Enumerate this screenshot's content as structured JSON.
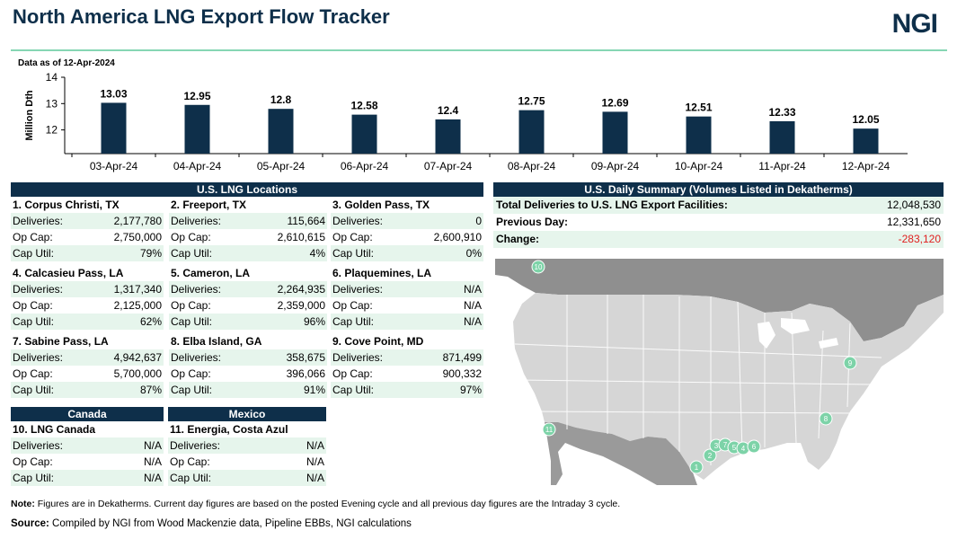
{
  "header": {
    "title": "North America LNG Export Flow Tracker",
    "logo": "NGI",
    "as_of": "Data as of 12-Apr-2024"
  },
  "chart_data": {
    "type": "bar",
    "categories": [
      "03-Apr-24",
      "04-Apr-24",
      "05-Apr-24",
      "06-Apr-24",
      "07-Apr-24",
      "08-Apr-24",
      "09-Apr-24",
      "10-Apr-24",
      "11-Apr-24",
      "12-Apr-24"
    ],
    "values": [
      13.03,
      12.95,
      12.8,
      12.58,
      12.4,
      12.75,
      12.69,
      12.51,
      12.33,
      12.05
    ],
    "value_labels": [
      "13.03",
      "12.95",
      "12.8",
      "12.58",
      "12.4",
      "12.75",
      "12.69",
      "12.51",
      "12.33",
      "12.05"
    ],
    "ylabel": "Million Dth",
    "yticks": [
      "12",
      "13",
      "14"
    ],
    "ylim": [
      11.1,
      14
    ],
    "bar_color": "#0e2f4a",
    "grid": false
  },
  "us": {
    "header": "U.S. LNG Locations",
    "terminals": [
      {
        "name": "1. Corpus Christi, TX",
        "deliveries": "2,177,780",
        "op_cap": "2,750,000",
        "cap_util": "79%"
      },
      {
        "name": "2. Freeport, TX",
        "deliveries": "115,664",
        "op_cap": "2,610,615",
        "cap_util": "4%"
      },
      {
        "name": "3. Golden Pass, TX",
        "deliveries": "0",
        "op_cap": "2,600,910",
        "cap_util": "0%"
      },
      {
        "name": "4. Calcasieu Pass, LA",
        "deliveries": "1,317,340",
        "op_cap": "2,125,000",
        "cap_util": "62%"
      },
      {
        "name": "5. Cameron, LA",
        "deliveries": "2,264,935",
        "op_cap": "2,359,000",
        "cap_util": "96%"
      },
      {
        "name": "6. Plaquemines, LA",
        "deliveries": "N/A",
        "op_cap": "N/A",
        "cap_util": "N/A"
      },
      {
        "name": "7. Sabine Pass, LA",
        "deliveries": "4,942,637",
        "op_cap": "5,700,000",
        "cap_util": "87%"
      },
      {
        "name": "8. Elba Island, GA",
        "deliveries": "358,675",
        "op_cap": "396,066",
        "cap_util": "91%"
      },
      {
        "name": "9. Cove Point, MD",
        "deliveries": "871,499",
        "op_cap": "900,332",
        "cap_util": "97%"
      }
    ]
  },
  "canada": {
    "header": "Canada",
    "terminal": {
      "name": "10. LNG Canada",
      "deliveries": "N/A",
      "op_cap": "N/A",
      "cap_util": "N/A"
    }
  },
  "mexico": {
    "header": "Mexico",
    "terminal": {
      "name": "11. Energia, Costa Azul",
      "deliveries": "N/A",
      "op_cap": "N/A",
      "cap_util": "N/A"
    }
  },
  "labels": {
    "deliveries": "Deliveries:",
    "op_cap": "Op Cap:",
    "cap_util": "Cap Util:"
  },
  "summary": {
    "header": "U.S. Daily Summary (Volumes Listed in Dekatherms)",
    "total_label": "Total Deliveries to U.S. LNG Export Facilities:",
    "total_value": "12,048,530",
    "prev_label": "Previous Day:",
    "prev_value": "12,331,650",
    "change_label": "Change:",
    "change_value": "-283,120"
  },
  "map": {
    "markers": [
      "1",
      "2",
      "3",
      "7",
      "5",
      "4",
      "6",
      "8",
      "9",
      "10",
      "11"
    ],
    "marker_color": "#7dd3a8",
    "land_color": "#d9d9d9",
    "mexico_color": "#9a9a9a",
    "water_color": "#ffffff"
  },
  "footer": {
    "note_label": "Note:",
    "note_text": " Figures are in Dekatherms. Current day figures are based on the posted Evening cycle and all previous day figures are the Intraday 3 cycle.",
    "source_label": "Source:",
    "source_text": "  Compiled by NGI from Wood Mackenzie data, Pipeline EBBs, NGI calculations"
  }
}
